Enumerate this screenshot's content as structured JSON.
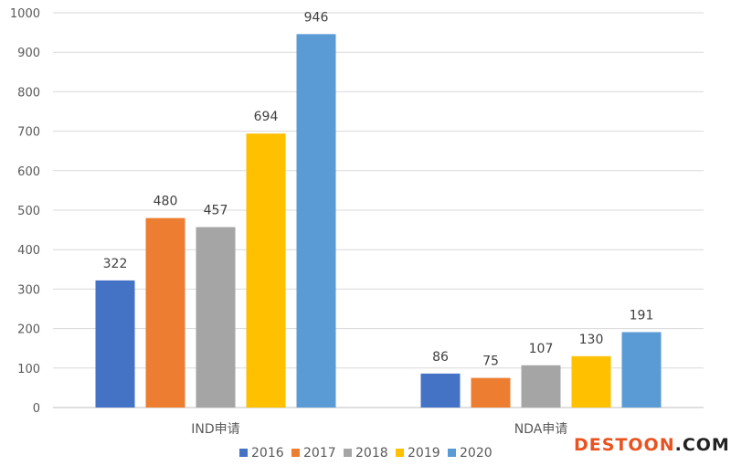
{
  "chart_data": {
    "type": "bar",
    "categories": [
      "IND申请",
      "NDA申请"
    ],
    "series": [
      {
        "name": "2016",
        "values": [
          322,
          86
        ],
        "color": "#4472c4"
      },
      {
        "name": "2017",
        "values": [
          480,
          75
        ],
        "color": "#ed7d31"
      },
      {
        "name": "2018",
        "values": [
          457,
          107
        ],
        "color": "#a5a5a5"
      },
      {
        "name": "2019",
        "values": [
          694,
          130
        ],
        "color": "#ffc000"
      },
      {
        "name": "2020",
        "values": [
          946,
          191
        ],
        "color": "#5b9bd5"
      }
    ],
    "ylim": [
      0,
      1000
    ],
    "yticks": [
      0,
      100,
      200,
      300,
      400,
      500,
      600,
      700,
      800,
      900,
      1000
    ],
    "grid": true,
    "legend_position": "bottom",
    "data_labels": true
  },
  "watermark": {
    "prefix": "DESTOON",
    "suffix": ".COM"
  }
}
